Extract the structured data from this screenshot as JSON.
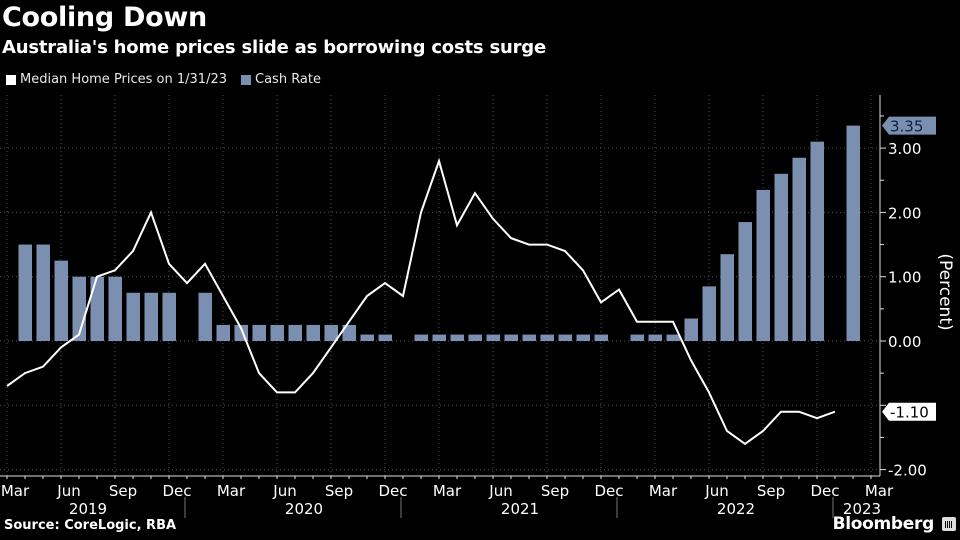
{
  "header": {
    "title": "Cooling Down",
    "subtitle": "Australia's home prices slide as borrowing costs surge"
  },
  "legend": [
    {
      "label": "Median Home Prices on 1/31/23",
      "color": "#ffffff"
    },
    {
      "label": "Cash Rate",
      "color": "#7b8fb0"
    }
  ],
  "footer": {
    "source": "Source: CoreLogic, RBA",
    "brand": "Bloomberg"
  },
  "chart_data": {
    "type": "bar+line",
    "title": "Cooling Down",
    "subtitle": "Australia's home prices slide as borrowing costs surge",
    "ylabel": "(Percent)",
    "ylim": [
      -2.2,
      3.7
    ],
    "y_ticks": [
      "3.00",
      "2.00",
      "1.00",
      "0.00",
      "-1.00",
      "-2.00"
    ],
    "y_tick_values": [
      3,
      2,
      1,
      0,
      -1,
      -2
    ],
    "grid": true,
    "legend_position": "top-left",
    "x_start": "Mar 2019",
    "x_month_labels": [
      "Mar",
      "Jun",
      "Sep",
      "Dec",
      "Mar",
      "Jun",
      "Sep",
      "Dec",
      "Mar",
      "Jun",
      "Sep",
      "Dec",
      "Mar",
      "Jun",
      "Sep",
      "Dec",
      "Mar"
    ],
    "x_year_labels": [
      {
        "label": "2019",
        "month_index": 4.5
      },
      {
        "label": "2020",
        "month_index": 16.5
      },
      {
        "label": "2021",
        "month_index": 28.5
      },
      {
        "label": "2022",
        "month_index": 40.5
      },
      {
        "label": "2023",
        "month_index": 47.5
      }
    ],
    "year_separators": [
      9.5,
      21.5,
      33.5,
      45.5
    ],
    "months": [
      "Mar 2019",
      "Apr 2019",
      "May 2019",
      "Jun 2019",
      "Jul 2019",
      "Aug 2019",
      "Sep 2019",
      "Oct 2019",
      "Nov 2019",
      "Dec 2019",
      "Jan 2020",
      "Feb 2020",
      "Mar 2020",
      "Apr 2020",
      "May 2020",
      "Jun 2020",
      "Jul 2020",
      "Aug 2020",
      "Sep 2020",
      "Oct 2020",
      "Nov 2020",
      "Dec 2020",
      "Jan 2021",
      "Feb 2021",
      "Mar 2021",
      "Apr 2021",
      "May 2021",
      "Jun 2021",
      "Jul 2021",
      "Aug 2021",
      "Sep 2021",
      "Oct 2021",
      "Nov 2021",
      "Dec 2021",
      "Jan 2022",
      "Feb 2022",
      "Mar 2022",
      "Apr 2022",
      "May 2022",
      "Jun 2022",
      "Jul 2022",
      "Aug 2022",
      "Sep 2022",
      "Oct 2022",
      "Nov 2022",
      "Dec 2022",
      "Jan 2023",
      "Feb 2023"
    ],
    "series": [
      {
        "name": "Median Home Prices on 1/31/23",
        "type": "line",
        "color": "#ffffff",
        "values": [
          -0.7,
          -0.5,
          -0.4,
          -0.1,
          0.1,
          1.0,
          1.1,
          1.4,
          2.0,
          1.2,
          0.9,
          1.2,
          0.7,
          0.2,
          -0.5,
          -0.8,
          -0.8,
          -0.5,
          -0.1,
          0.3,
          0.7,
          0.9,
          0.7,
          2.0,
          2.8,
          1.8,
          2.3,
          1.9,
          1.6,
          1.5,
          1.5,
          1.4,
          1.1,
          0.6,
          0.8,
          0.3,
          0.3,
          0.3,
          -0.3,
          -0.8,
          -1.4,
          -1.6,
          -1.4,
          -1.1,
          -1.1,
          -1.2,
          -1.1,
          null
        ],
        "last_value_label": "-1.10"
      },
      {
        "name": "Cash Rate",
        "type": "bar",
        "color": "#7b8fb0",
        "values": [
          null,
          1.5,
          1.5,
          1.25,
          1.0,
          1.0,
          1.0,
          0.75,
          0.75,
          0.75,
          null,
          0.75,
          0.25,
          0.25,
          0.25,
          0.25,
          0.25,
          0.25,
          0.25,
          0.25,
          0.1,
          0.1,
          null,
          0.1,
          0.1,
          0.1,
          0.1,
          0.1,
          0.1,
          0.1,
          0.1,
          0.1,
          0.1,
          0.1,
          null,
          0.1,
          0.1,
          0.1,
          0.35,
          0.85,
          1.35,
          1.85,
          2.35,
          2.6,
          2.85,
          3.1,
          null,
          3.35
        ],
        "last_value_label": "3.35"
      }
    ]
  }
}
